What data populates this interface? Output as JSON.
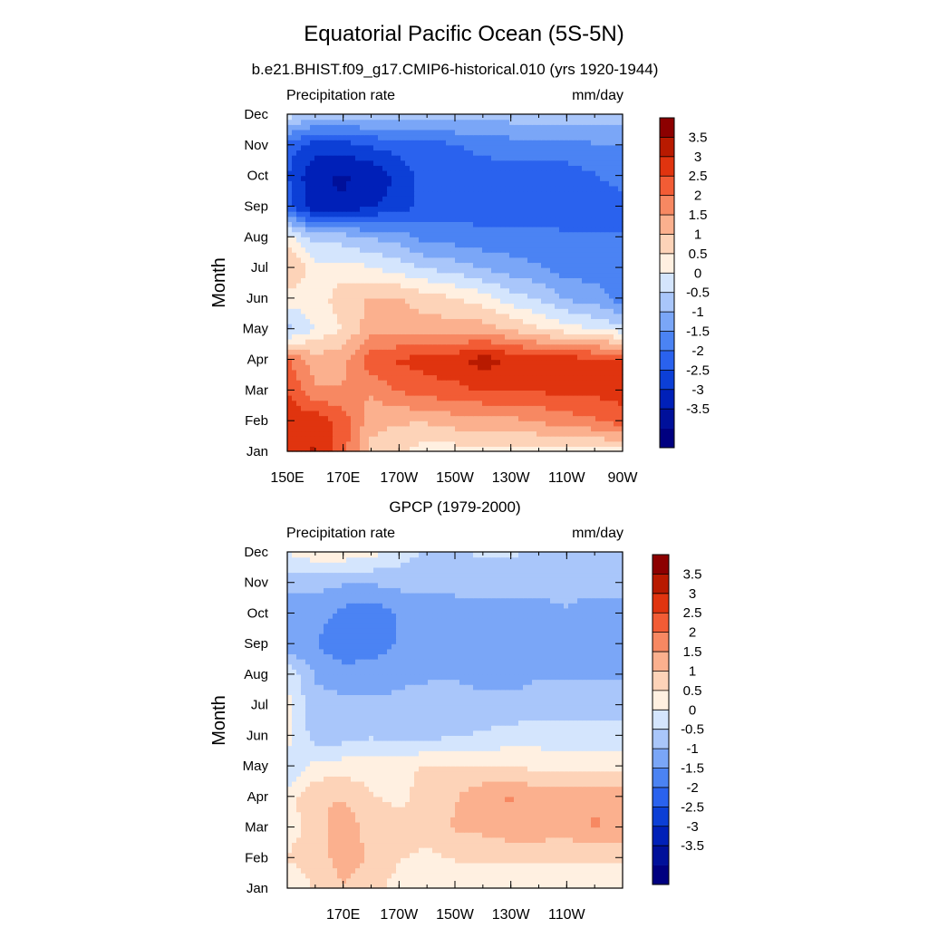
{
  "figure": {
    "title": "Equatorial Pacific Ocean (5S-5N)"
  },
  "colors": {
    "levels": [
      "#000080",
      "#00109a",
      "#0020b8",
      "#0c3fd6",
      "#2a62ee",
      "#4b83f3",
      "#7aa6f7",
      "#a9c6fa",
      "#d4e5fd",
      "#fff0e1",
      "#fdd3b8",
      "#fbb08e",
      "#f78862",
      "#f25c35",
      "#e0340f",
      "#b81a00",
      "#8c0000"
    ]
  },
  "chart_data": [
    {
      "type": "heatmap",
      "subtitle": "b.e21.BHIST.f09_g17.CMIP6-historical.010 (yrs 1920-1944)",
      "left_label": "Precipitation rate",
      "right_label": "mm/day",
      "ylabel": "Month",
      "xlabel": "",
      "months": [
        "Jan",
        "Feb",
        "Mar",
        "Apr",
        "May",
        "Jun",
        "Jul",
        "Aug",
        "Sep",
        "Oct",
        "Nov",
        "Dec"
      ],
      "lon_ticks": [
        "150E",
        "170E",
        "170W",
        "150W",
        "130W",
        "110W",
        "90W"
      ],
      "lon_tick_values": [
        150,
        170,
        190,
        210,
        230,
        250,
        270
      ],
      "xlim": [
        150,
        270
      ],
      "colorbar_labels": [
        "3.5",
        "3",
        "2.5",
        "2",
        "1.5",
        "1",
        "0.5",
        "0",
        "-0.5",
        "-1",
        "-1.5",
        "-2",
        "-2.5",
        "-3",
        "-3.5"
      ],
      "lons": [
        150,
        160,
        170,
        180,
        190,
        200,
        210,
        220,
        230,
        240,
        250,
        260,
        270
      ],
      "values": [
        [
          3.0,
          3.3,
          2.5,
          1.0,
          0.8,
          0.5,
          0.5,
          0.5,
          0.5,
          0.5,
          0.5,
          0.5,
          0.5
        ],
        [
          3.0,
          3.2,
          2.5,
          1.5,
          1.3,
          1.3,
          1.5,
          1.5,
          1.6,
          1.8,
          2.0,
          2.2,
          2.5
        ],
        [
          2.8,
          1.8,
          1.8,
          1.8,
          2.3,
          2.5,
          2.6,
          2.8,
          2.8,
          2.8,
          2.9,
          2.9,
          3.0
        ],
        [
          2.3,
          1.5,
          1.6,
          2.6,
          2.8,
          3.0,
          3.1,
          3.5,
          3.2,
          3.0,
          3.0,
          2.9,
          2.8
        ],
        [
          -0.5,
          0.3,
          0.8,
          1.5,
          1.5,
          1.5,
          1.5,
          1.5,
          1.2,
          0.8,
          0.5,
          0.2,
          0.0
        ],
        [
          0.5,
          0.5,
          1.0,
          1.3,
          1.3,
          1.0,
          0.8,
          0.5,
          0.0,
          -0.3,
          -0.8,
          -1.0,
          -1.5
        ],
        [
          1.3,
          0.5,
          0.5,
          0.3,
          0.0,
          -0.3,
          -0.5,
          -0.8,
          -1.0,
          -1.2,
          -1.5,
          -1.5,
          -1.5
        ],
        [
          0.5,
          -0.5,
          -0.5,
          -0.8,
          -1.0,
          -1.5,
          -1.5,
          -1.6,
          -1.6,
          -1.6,
          -1.7,
          -1.7,
          -1.7
        ],
        [
          -2.0,
          -3.2,
          -3.2,
          -2.8,
          -2.5,
          -2.0,
          -2.0,
          -2.0,
          -2.0,
          -2.0,
          -2.0,
          -2.0,
          -2.0
        ],
        [
          -2.2,
          -3.2,
          -3.3,
          -3.2,
          -2.6,
          -2.0,
          -2.0,
          -2.0,
          -2.0,
          -2.0,
          -2.0,
          -1.8,
          -1.5
        ],
        [
          -2.0,
          -2.5,
          -2.5,
          -2.2,
          -2.0,
          -2.0,
          -1.8,
          -1.6,
          -1.5,
          -1.4,
          -1.4,
          -1.3,
          -1.3
        ],
        [
          0.0,
          -0.5,
          -0.5,
          -0.5,
          -0.5,
          -0.5,
          -0.5,
          -0.5,
          -0.5,
          -0.5,
          -0.5,
          -0.5,
          -0.5
        ]
      ]
    },
    {
      "type": "heatmap",
      "subtitle": "GPCP (1979-2000)",
      "left_label": "Precipitation rate",
      "right_label": "mm/day",
      "ylabel": "Month",
      "xlabel": "",
      "months": [
        "Jan",
        "Feb",
        "Mar",
        "Apr",
        "May",
        "Jun",
        "Jul",
        "Aug",
        "Sep",
        "Oct",
        "Nov",
        "Dec"
      ],
      "lon_ticks": [
        "170E",
        "170W",
        "150W",
        "130W",
        "110W"
      ],
      "lon_tick_values": [
        170,
        190,
        210,
        230,
        250
      ],
      "xlim": [
        150,
        270
      ],
      "colorbar_labels": [
        "3.5",
        "3",
        "2.5",
        "2",
        "1.5",
        "1",
        "0.5",
        "0",
        "-0.5",
        "-1",
        "-1.5",
        "-2",
        "-2.5",
        "-3",
        "-3.5"
      ],
      "lons": [
        150,
        160,
        170,
        180,
        190,
        200,
        210,
        220,
        230,
        240,
        250,
        260,
        270
      ],
      "values": [
        [
          0.3,
          0.8,
          1.2,
          1.0,
          0.5,
          0.3,
          0.3,
          0.3,
          0.3,
          0.3,
          0.3,
          0.3,
          0.3
        ],
        [
          0.8,
          1.0,
          1.5,
          1.2,
          0.8,
          0.6,
          0.8,
          0.8,
          0.8,
          0.8,
          0.8,
          0.8,
          0.8
        ],
        [
          0.5,
          1.0,
          1.6,
          1.0,
          1.0,
          1.0,
          1.3,
          1.4,
          1.6,
          1.6,
          1.5,
          1.8,
          1.6
        ],
        [
          0.5,
          1.2,
          1.2,
          0.8,
          0.6,
          1.0,
          1.2,
          1.6,
          1.8,
          1.6,
          1.6,
          1.7,
          1.5
        ],
        [
          -0.3,
          0.4,
          0.5,
          0.5,
          0.6,
          0.8,
          0.8,
          0.8,
          0.8,
          0.6,
          0.5,
          0.5,
          0.5
        ],
        [
          0.5,
          -0.5,
          -0.5,
          -0.3,
          -0.5,
          -0.4,
          -0.3,
          -0.2,
          -0.1,
          0.0,
          0.0,
          0.0,
          0.0
        ],
        [
          0.4,
          -0.6,
          -0.6,
          -0.7,
          -0.7,
          -0.6,
          -0.5,
          -0.5,
          -0.5,
          -0.5,
          -0.5,
          -0.5,
          -0.5
        ],
        [
          0.2,
          -0.8,
          -1.0,
          -0.9,
          -0.8,
          -0.8,
          -0.8,
          -1.0,
          -1.0,
          -0.8,
          -0.8,
          -0.8,
          -0.8
        ],
        [
          -1.2,
          -1.2,
          -1.7,
          -1.6,
          -1.2,
          -1.0,
          -1.1,
          -1.2,
          -1.2,
          -1.0,
          -0.8,
          -1.0,
          -1.0
        ],
        [
          -1.0,
          -1.0,
          -1.4,
          -1.6,
          -1.2,
          -1.0,
          -1.1,
          -1.1,
          -1.1,
          -1.0,
          -0.8,
          -1.1,
          -1.0
        ],
        [
          -0.6,
          -0.6,
          -0.7,
          -0.7,
          -0.6,
          -0.6,
          -0.5,
          -0.5,
          -0.5,
          -0.5,
          -0.5,
          -0.5,
          -0.5
        ],
        [
          0.3,
          0.6,
          0.6,
          0.4,
          0.0,
          -0.3,
          -0.3,
          -0.2,
          -0.2,
          -0.3,
          -0.3,
          -0.3,
          -0.3
        ]
      ]
    }
  ]
}
